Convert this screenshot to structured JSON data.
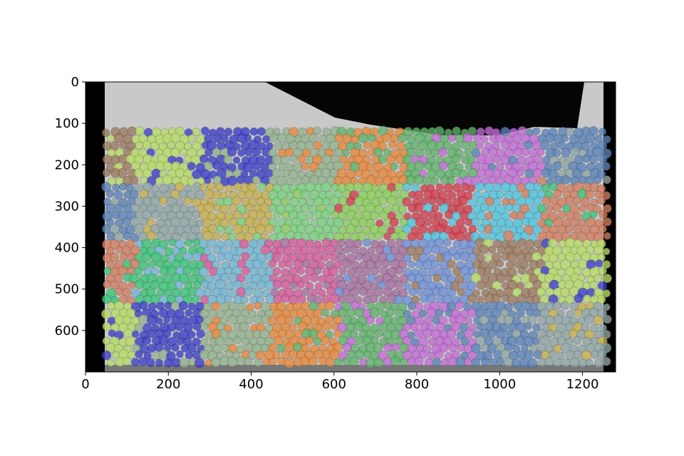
{
  "chart_data": {
    "type": "image",
    "x_ticks": [
      0,
      200,
      400,
      600,
      800,
      1000,
      1200
    ],
    "y_ticks": [
      0,
      100,
      200,
      300,
      400,
      500,
      600
    ],
    "xlim": [
      0,
      1280
    ],
    "ylim": [
      700,
      0
    ],
    "palette": [
      "#5fb36a",
      "#d33c4c",
      "#6e8fd8",
      "#c36bd6",
      "#4ec7e2",
      "#9c7a5f",
      "#5a83b8",
      "#d27d5f",
      "#b8dc67",
      "#8fa5a7",
      "#39c477",
      "#3b3fc7",
      "#c6b14d",
      "#6fb7d6",
      "#93b28e",
      "#7ad27e",
      "#d65a9b",
      "#e8883a",
      "#8cd15a",
      "#a66ea0"
    ]
  }
}
